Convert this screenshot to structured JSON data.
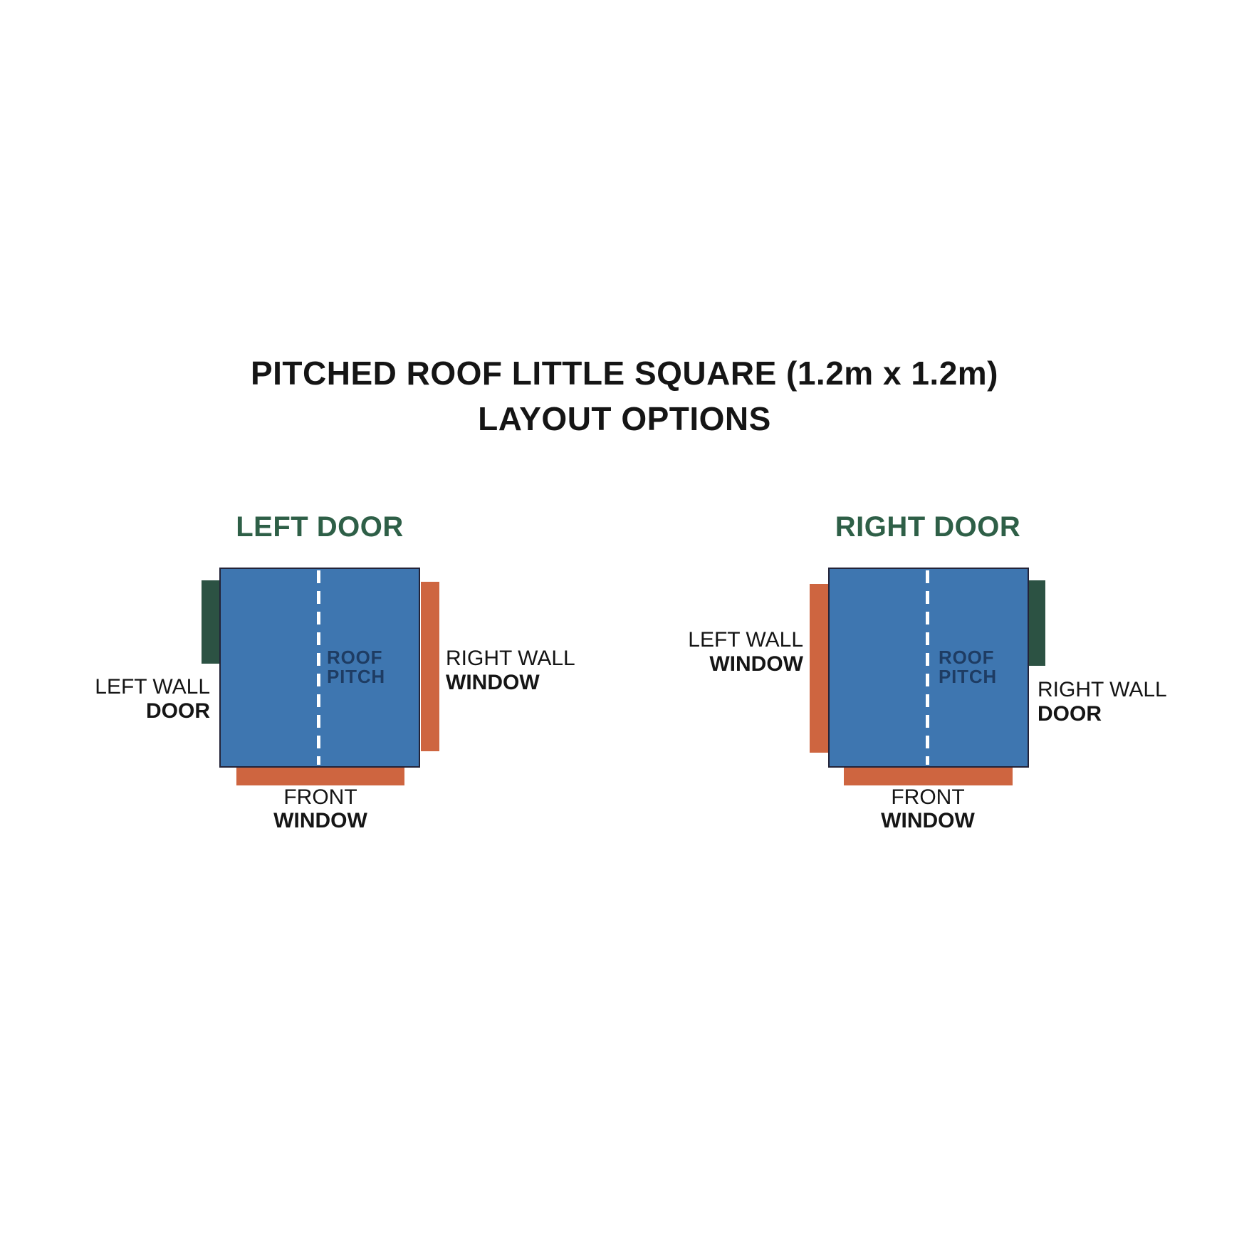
{
  "title": {
    "line1": "PITCHED ROOF LITTLE SQUARE (1.2m x 1.2m)",
    "line2": "LAYOUT OPTIONS"
  },
  "colors": {
    "roof-blue": "#3E76B0",
    "door-green": "#2C5243",
    "window-orange": "#CE6540",
    "heading-green": "#2E5F47",
    "pitch-navy": "#1E3C63",
    "ink": "#151515",
    "dash": "#FFFFFF",
    "roof-border": "#232338",
    "bg": "#FFFFFF"
  },
  "diagrams": [
    {
      "heading": "LEFT DOOR",
      "roof_pitch": {
        "line1": "ROOF",
        "line2": "PITCH"
      },
      "left_wall": {
        "line1": "LEFT WALL",
        "line2": "DOOR"
      },
      "right_wall": {
        "line1": "RIGHT WALL",
        "line2": "WINDOW"
      },
      "front": {
        "line1": "FRONT",
        "line2": "WINDOW"
      },
      "left_fixture": "door",
      "right_fixture": "window",
      "front_fixture": "window"
    },
    {
      "heading": "RIGHT DOOR",
      "roof_pitch": {
        "line1": "ROOF",
        "line2": "PITCH"
      },
      "left_wall": {
        "line1": "LEFT WALL",
        "line2": "WINDOW"
      },
      "right_wall": {
        "line1": "RIGHT WALL",
        "line2": "DOOR"
      },
      "front": {
        "line1": "FRONT",
        "line2": "WINDOW"
      },
      "left_fixture": "window",
      "right_fixture": "door",
      "front_fixture": "window"
    }
  ]
}
